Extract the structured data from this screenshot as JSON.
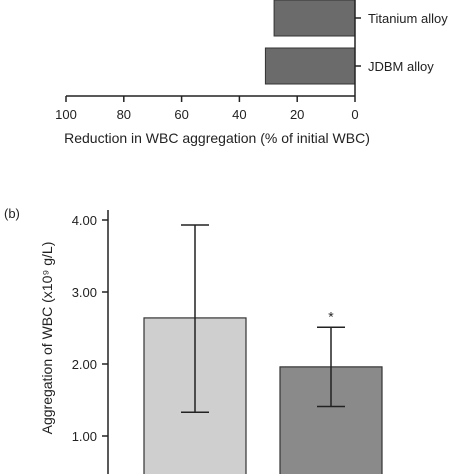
{
  "chart_data": [
    {
      "type": "bar",
      "orientation": "horizontal",
      "categories": [
        "Titanium alloy",
        "JDBM alloy"
      ],
      "values": [
        28,
        31
      ],
      "xlabel": "Reduction in WBC aggregation (% of initial WBC)",
      "xlim": [
        100,
        0
      ],
      "xticks": [
        "100",
        "80",
        "60",
        "40",
        "20",
        "0"
      ],
      "axis_reversed": true,
      "bar_color": "#6b6b6b",
      "grid": false
    },
    {
      "type": "bar",
      "panel_label": "(b)",
      "ylabel": "Aggregation of WBC (x10⁹ g/L)",
      "ylim": [
        0.5,
        4.2
      ],
      "yticks": [
        "4.00",
        "3.00",
        "2.00",
        "1.00"
      ],
      "series": [
        {
          "values": [
            2.64,
            1.96
          ],
          "error_low": [
            1.33,
            1.41
          ],
          "error_high": [
            3.93,
            2.51
          ]
        }
      ],
      "bar_colors": [
        "#cfcfcf",
        "#8a8a8a"
      ],
      "annotations": [
        {
          "bar_index": 1,
          "text": "*"
        }
      ],
      "grid": false
    }
  ]
}
